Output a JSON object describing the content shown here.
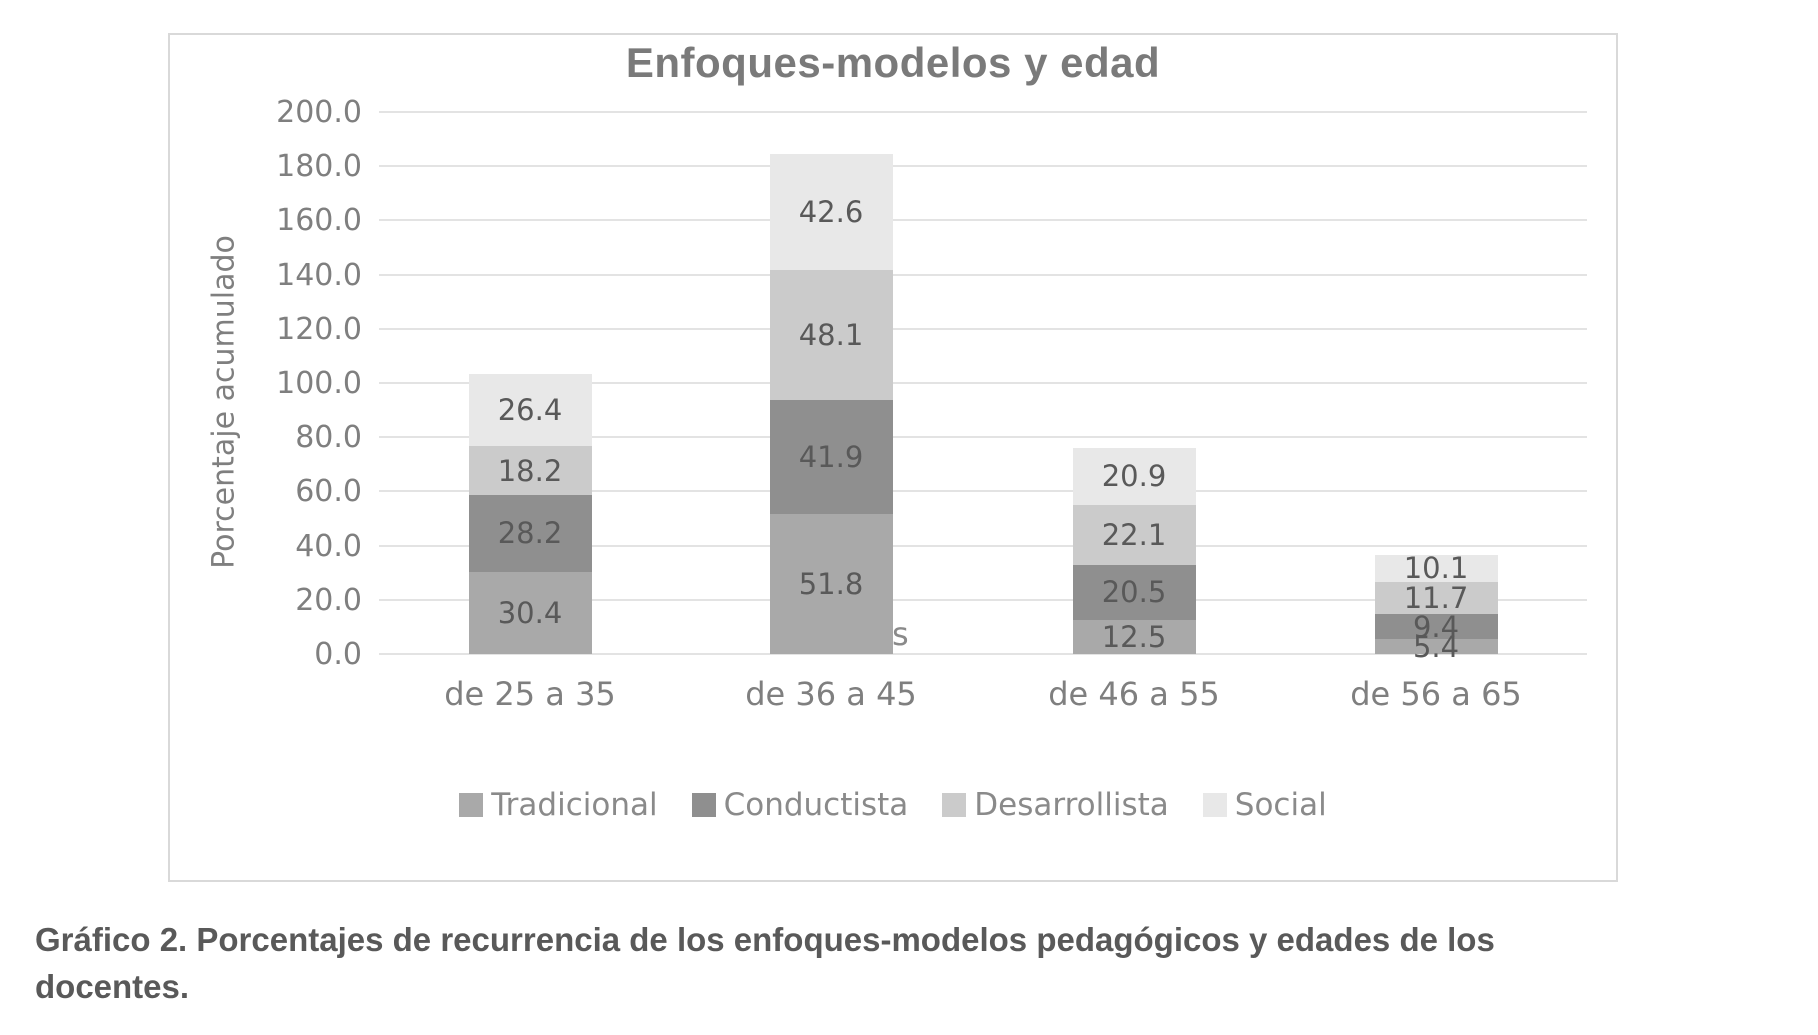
{
  "chart_data": {
    "type": "bar",
    "stacked": true,
    "title": "Enfoques-modelos y edad",
    "xlabel": "",
    "ylabel": "Porcentaje acumulado",
    "categories": [
      "de 25 a 35",
      "de 36 a 45",
      "de 46 a 55",
      "de 56 a 65"
    ],
    "series": [
      {
        "name": "Tradicional",
        "color": "#a9a9a9",
        "values": [
          30.4,
          51.8,
          12.5,
          5.4
        ]
      },
      {
        "name": "Conductista",
        "color": "#8f8f8f",
        "values": [
          28.2,
          41.9,
          20.5,
          9.4
        ]
      },
      {
        "name": "Desarrollista",
        "color": "#cbcbcb",
        "values": [
          18.2,
          48.1,
          22.1,
          11.7
        ]
      },
      {
        "name": "Social",
        "color": "#e8e8e8",
        "values": [
          26.4,
          42.6,
          20.9,
          10.1
        ]
      }
    ],
    "ylim": [
      0,
      200
    ],
    "ytick_step": 20,
    "ytick_decimals": 1,
    "data_label_decimals": 1,
    "grid": true,
    "legend_position": "bottom",
    "partially_hidden_text_visible": "s"
  },
  "caption": {
    "text": "Gráfico 2. Porcentajes de recurrencia de los enfoques-modelos pedagógicos y edades de los docentes."
  },
  "colors": {
    "gridline": "#e3e3e3",
    "chart_border": "#d9d9d9",
    "title_text": "#7a7a7a",
    "axis_text": "#7f7f7f",
    "data_label_text": "#595959",
    "legend_text": "#8a8a8a",
    "caption_text": "#595959"
  }
}
